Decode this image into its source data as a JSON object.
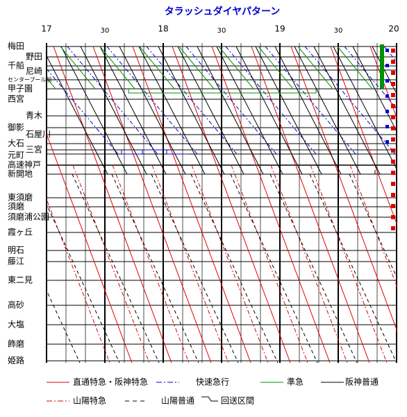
{
  "title": "タラッシュダイヤパターン",
  "time_axis": {
    "hours": [
      "17",
      "18",
      "19",
      "20"
    ],
    "half_hours": [
      "30",
      "30",
      "30"
    ]
  },
  "stations": [
    "梅田",
    "野田",
    "千船",
    "尼崎",
    "センタープール前",
    "甲子園",
    "西宮",
    "青木",
    "御影",
    "石屋川",
    "大石",
    "三宮",
    "元町",
    "高速神戸",
    "新開地",
    "東須磨",
    "須磨",
    "須磨浦公園",
    "霞ヶ丘",
    "明石",
    "藤江",
    "東二見",
    "高砂",
    "大塩",
    "飾磨",
    "姫路"
  ],
  "legend": [
    {
      "label": "直通特急・阪神特急",
      "color": "#e00000",
      "style": "solid"
    },
    {
      "label": "快速急行",
      "color": "#0000d0",
      "style": "dashdot"
    },
    {
      "label": "準急",
      "color": "#009000",
      "style": "solid"
    },
    {
      "label": "阪神普通",
      "color": "#000000",
      "style": "solid"
    },
    {
      "label": "山陽特急",
      "color": "#e00000",
      "style": "dashdot"
    },
    {
      "label": "山陽普通",
      "color": "#000000",
      "style": "dashed"
    },
    {
      "label": "回送区間",
      "color": "#000000",
      "style": "icon"
    }
  ]
}
